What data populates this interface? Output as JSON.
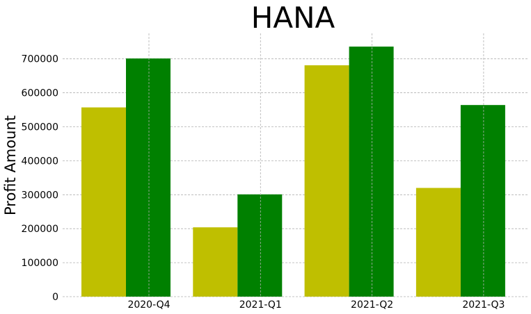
{
  "chart_data": {
    "type": "bar",
    "title": "HANA",
    "xlabel": "",
    "ylabel": "Profit Amount",
    "categories": [
      "2020-Q4",
      "2021-Q1",
      "2021-Q2",
      "2021-Q3"
    ],
    "series": [
      {
        "values": [
          557000,
          204000,
          681000,
          320000
        ],
        "color": "#bfbf00"
      },
      {
        "values": [
          701000,
          301000,
          736000,
          564000
        ],
        "color": "#008000"
      }
    ],
    "ylim": [
      0,
      775000
    ],
    "yticks": [
      0,
      100000,
      200000,
      300000,
      400000,
      500000,
      600000,
      700000
    ],
    "ytick_labels": [
      "0",
      "100000",
      "200000",
      "300000",
      "400000",
      "500000",
      "600000",
      "700000"
    ],
    "grid": true,
    "legend": "none"
  }
}
